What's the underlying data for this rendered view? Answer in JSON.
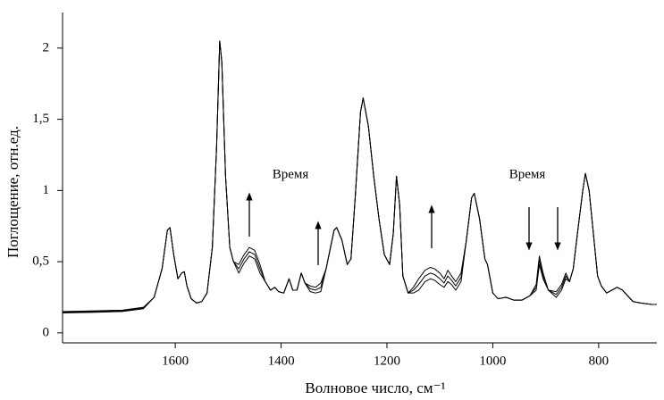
{
  "chart_data": {
    "type": "line",
    "xlabel": "Волновое число, см⁻¹",
    "ylabel": "Поглощение, отн.ед.",
    "annotations": [
      "Время",
      "Время"
    ],
    "xlim": [
      1813,
      690
    ],
    "ylim": [
      -0.07,
      2.25
    ],
    "xticks": [
      1600,
      1400,
      1200,
      1000,
      800
    ],
    "yticks": [
      0,
      {
        "value": 0.5,
        "label": "0,5"
      },
      1,
      {
        "value": 1.5,
        "label": "1,5"
      },
      2
    ],
    "grid": false,
    "x": [
      1813,
      1750,
      1700,
      1660,
      1640,
      1625,
      1615,
      1610,
      1603,
      1595,
      1588,
      1583,
      1578,
      1570,
      1560,
      1550,
      1540,
      1530,
      1522,
      1516,
      1512,
      1505,
      1497,
      1490,
      1480,
      1470,
      1460,
      1450,
      1440,
      1430,
      1420,
      1412,
      1405,
      1395,
      1385,
      1378,
      1370,
      1362,
      1355,
      1345,
      1335,
      1325,
      1315,
      1300,
      1295,
      1285,
      1275,
      1268,
      1260,
      1250,
      1245,
      1235,
      1225,
      1215,
      1205,
      1195,
      1188,
      1182,
      1176,
      1170,
      1160,
      1150,
      1140,
      1128,
      1118,
      1110,
      1100,
      1092,
      1085,
      1078,
      1070,
      1060,
      1050,
      1040,
      1035,
      1025,
      1015,
      1010,
      1005,
      1000,
      990,
      975,
      960,
      945,
      930,
      918,
      912,
      905,
      895,
      880,
      870,
      862,
      855,
      848,
      840,
      830,
      825,
      818,
      810,
      802,
      795,
      785,
      775,
      765,
      755,
      745,
      735,
      720,
      700,
      690
    ],
    "series": [
      {
        "color": "#000000",
        "values": [
          0.15,
          0.155,
          0.16,
          0.18,
          0.25,
          0.45,
          0.72,
          0.74,
          0.55,
          0.38,
          0.42,
          0.43,
          0.33,
          0.24,
          0.21,
          0.22,
          0.28,
          0.6,
          1.3,
          2.05,
          1.9,
          1.1,
          0.6,
          0.5,
          0.48,
          0.55,
          0.6,
          0.58,
          0.48,
          0.36,
          0.3,
          0.32,
          0.29,
          0.28,
          0.38,
          0.3,
          0.3,
          0.42,
          0.35,
          0.33,
          0.32,
          0.35,
          0.45,
          0.72,
          0.74,
          0.65,
          0.48,
          0.52,
          0.95,
          1.55,
          1.65,
          1.45,
          1.1,
          0.8,
          0.55,
          0.48,
          0.7,
          1.1,
          0.9,
          0.4,
          0.28,
          0.32,
          0.38,
          0.44,
          0.46,
          0.45,
          0.42,
          0.38,
          0.44,
          0.4,
          0.36,
          0.42,
          0.65,
          0.95,
          0.98,
          0.8,
          0.52,
          0.48,
          0.38,
          0.28,
          0.24,
          0.25,
          0.23,
          0.23,
          0.26,
          0.3,
          0.48,
          0.38,
          0.3,
          0.25,
          0.3,
          0.38,
          0.36,
          0.45,
          0.7,
          1.0,
          1.12,
          1.0,
          0.7,
          0.4,
          0.33,
          0.28,
          0.3,
          0.32,
          0.3,
          0.26,
          0.22,
          0.21,
          0.2,
          0.2
        ]
      },
      {
        "color": "#000000",
        "values": [
          0.145,
          0.15,
          0.155,
          0.175,
          0.25,
          0.45,
          0.72,
          0.74,
          0.55,
          0.38,
          0.42,
          0.43,
          0.33,
          0.24,
          0.21,
          0.22,
          0.28,
          0.6,
          1.3,
          2.05,
          1.9,
          1.1,
          0.6,
          0.5,
          0.45,
          0.52,
          0.57,
          0.55,
          0.45,
          0.36,
          0.3,
          0.32,
          0.29,
          0.28,
          0.38,
          0.3,
          0.3,
          0.42,
          0.35,
          0.31,
          0.3,
          0.32,
          0.45,
          0.72,
          0.74,
          0.65,
          0.48,
          0.52,
          0.95,
          1.55,
          1.65,
          1.45,
          1.1,
          0.8,
          0.55,
          0.48,
          0.7,
          1.1,
          0.9,
          0.4,
          0.28,
          0.3,
          0.34,
          0.4,
          0.42,
          0.41,
          0.38,
          0.35,
          0.4,
          0.37,
          0.33,
          0.39,
          0.65,
          0.95,
          0.98,
          0.8,
          0.52,
          0.48,
          0.38,
          0.28,
          0.24,
          0.25,
          0.23,
          0.23,
          0.26,
          0.32,
          0.51,
          0.4,
          0.3,
          0.27,
          0.32,
          0.4,
          0.36,
          0.45,
          0.7,
          1.0,
          1.12,
          1.0,
          0.7,
          0.4,
          0.33,
          0.28,
          0.3,
          0.32,
          0.3,
          0.26,
          0.22,
          0.21,
          0.2,
          0.2
        ]
      },
      {
        "color": "#000000",
        "values": [
          0.14,
          0.145,
          0.15,
          0.17,
          0.25,
          0.45,
          0.72,
          0.74,
          0.55,
          0.38,
          0.42,
          0.43,
          0.33,
          0.24,
          0.21,
          0.22,
          0.28,
          0.6,
          1.3,
          2.05,
          1.9,
          1.1,
          0.6,
          0.5,
          0.42,
          0.49,
          0.54,
          0.52,
          0.42,
          0.36,
          0.3,
          0.32,
          0.29,
          0.28,
          0.38,
          0.3,
          0.3,
          0.42,
          0.35,
          0.29,
          0.28,
          0.29,
          0.45,
          0.72,
          0.74,
          0.65,
          0.48,
          0.52,
          0.95,
          1.55,
          1.65,
          1.45,
          1.1,
          0.8,
          0.55,
          0.48,
          0.7,
          1.1,
          0.9,
          0.4,
          0.28,
          0.28,
          0.3,
          0.36,
          0.38,
          0.37,
          0.34,
          0.32,
          0.36,
          0.34,
          0.3,
          0.36,
          0.65,
          0.95,
          0.98,
          0.8,
          0.52,
          0.48,
          0.38,
          0.28,
          0.24,
          0.25,
          0.23,
          0.23,
          0.26,
          0.34,
          0.54,
          0.42,
          0.3,
          0.29,
          0.34,
          0.42,
          0.36,
          0.45,
          0.7,
          1.0,
          1.12,
          1.0,
          0.7,
          0.4,
          0.33,
          0.28,
          0.3,
          0.32,
          0.3,
          0.26,
          0.22,
          0.21,
          0.2,
          0.2
        ]
      }
    ]
  }
}
